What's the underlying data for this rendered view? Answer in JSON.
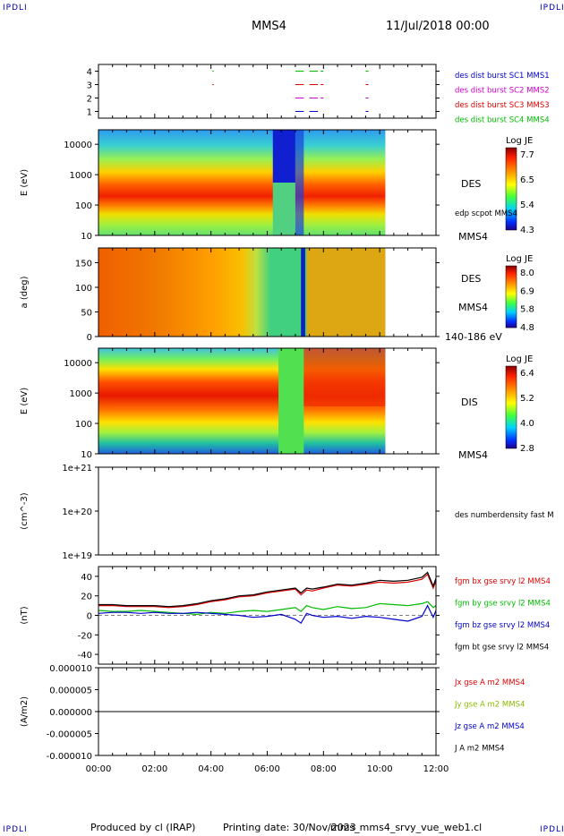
{
  "corners": {
    "tl": "IPDLI",
    "tr": "IPDLI",
    "bl": "IPDLI",
    "br": "IPDLI"
  },
  "header": {
    "title": "MMS4",
    "datetime": "11/Jul/2018 00:00"
  },
  "footer": {
    "produced_by": "Produced by cl (IRAP)",
    "printing_date": "Printing date: 30/Nov/2023",
    "file": "mms_mms4_srvy_vue_web1.cl"
  },
  "time_axis": {
    "ticks": [
      "00:00",
      "02:00",
      "04:00",
      "06:00",
      "08:00",
      "10:00",
      "12:00"
    ],
    "hours": [
      0,
      2,
      4,
      6,
      8,
      10,
      12
    ]
  },
  "chart_data": [
    {
      "type": "scatter",
      "title": "",
      "ylabel": "",
      "ylim": [
        0.5,
        4.5
      ],
      "yticks": [
        "1",
        "2",
        "3",
        "4"
      ],
      "legend": [
        {
          "text": "des dist burst SC1 MMS1",
          "color": "#0000cc"
        },
        {
          "text": "des dist burst SC2 MMS2",
          "color": "#cc00cc"
        },
        {
          "text": "des dist burst SC3 MMS3",
          "color": "#dd0000"
        },
        {
          "text": "des dist burst SC4 MMS4",
          "color": "#00bb00"
        }
      ],
      "intervals": [
        {
          "sc": 1,
          "color": "#0000cc",
          "h": [
            [
              7.0,
              7.3
            ],
            [
              7.5,
              7.8
            ],
            [
              9.5,
              9.6
            ]
          ]
        },
        {
          "sc": 2,
          "color": "#cc00cc",
          "h": [
            [
              7.0,
              7.3
            ],
            [
              7.5,
              7.8
            ],
            [
              7.9,
              8.0
            ],
            [
              9.5,
              9.6
            ]
          ]
        },
        {
          "sc": 3,
          "color": "#dd0000",
          "h": [
            [
              4.05,
              4.1
            ],
            [
              7.0,
              7.3
            ],
            [
              7.5,
              7.8
            ],
            [
              7.9,
              8.0
            ],
            [
              9.5,
              9.6
            ]
          ]
        },
        {
          "sc": 4,
          "color": "#00bb00",
          "h": [
            [
              4.05,
              4.1
            ],
            [
              7.0,
              7.3
            ],
            [
              7.5,
              7.8
            ],
            [
              7.9,
              8.0
            ],
            [
              9.5,
              9.6
            ]
          ]
        }
      ]
    },
    {
      "type": "heatmap",
      "ylabel": "E (eV)",
      "yscale": "log",
      "ylim": [
        10,
        30000
      ],
      "yticks": [
        "10",
        "100",
        "1000",
        "10000"
      ],
      "right_labels": [
        "DES",
        "edp scpot MMS4",
        "MMS4"
      ],
      "colorbar": {
        "title": "Log JE",
        "ticks": [
          "7.7",
          "6.5",
          "5.4",
          "4.3"
        ]
      },
      "data_end_hour": 10.2
    },
    {
      "type": "heatmap",
      "ylabel": "a (deg)",
      "ylim": [
        0,
        180
      ],
      "yticks": [
        "0",
        "50",
        "100",
        "150"
      ],
      "right_labels": [
        "DES",
        "MMS4",
        "140-186 eV"
      ],
      "colorbar": {
        "title": "Log JE",
        "ticks": [
          "8.0",
          "6.9",
          "5.8",
          "4.8"
        ]
      },
      "data_end_hour": 10.2
    },
    {
      "type": "heatmap",
      "ylabel": "E (eV)",
      "yscale": "log",
      "ylim": [
        10,
        30000
      ],
      "yticks": [
        "10",
        "100",
        "1000",
        "10000"
      ],
      "right_labels": [
        "DIS",
        "MMS4"
      ],
      "colorbar": {
        "title": "Log JE",
        "ticks": [
          "6.4",
          "5.2",
          "4.0",
          "2.8"
        ]
      },
      "data_end_hour": 10.2
    },
    {
      "type": "line",
      "ylabel": "(cm^-3)",
      "yscale": "log",
      "ylim": [
        1e+19,
        1e+21
      ],
      "yticks": [
        "1e+19",
        "1e+20",
        "1e+21"
      ],
      "legend": [
        {
          "text": "des numberdensity fast M",
          "color": "#000000"
        }
      ],
      "series": []
    },
    {
      "type": "line",
      "ylabel": "(nT)",
      "ylim": [
        -50,
        50
      ],
      "yticks": [
        "-40",
        "-20",
        "0",
        "20",
        "40"
      ],
      "legend": [
        {
          "text": "fgm bx gse srvy l2 MMS4",
          "color": "#dd0000"
        },
        {
          "text": "fgm by gse srvy l2 MMS4",
          "color": "#00bb00"
        },
        {
          "text": "fgm bz gse srvy l2 MMS4",
          "color": "#0000cc"
        },
        {
          "text": "fgm bt gse srvy l2 MMS4",
          "color": "#000000"
        }
      ],
      "series": [
        {
          "color": "#dd0000",
          "x": [
            0,
            0.5,
            1,
            1.5,
            2,
            2.5,
            3,
            3.5,
            4,
            4.5,
            5,
            5.5,
            6,
            6.5,
            7,
            7.2,
            7.4,
            7.6,
            8,
            8.5,
            9,
            9.5,
            10,
            10.5,
            11,
            11.5,
            11.7,
            11.9,
            12
          ],
          "y": [
            10,
            10,
            9,
            9,
            9,
            8,
            9,
            11,
            14,
            16,
            19,
            20,
            23,
            25,
            27,
            21,
            26,
            25,
            28,
            31,
            30,
            32,
            34,
            33,
            34,
            37,
            42,
            28,
            35
          ]
        },
        {
          "color": "#00bb00",
          "x": [
            0,
            0.5,
            1,
            1.5,
            2,
            2.5,
            3,
            3.5,
            4,
            4.5,
            5,
            5.5,
            6,
            6.5,
            7,
            7.2,
            7.4,
            7.6,
            8,
            8.5,
            9,
            9.5,
            10,
            10.5,
            11,
            11.5,
            11.7,
            11.9,
            12
          ],
          "y": [
            5,
            4,
            4,
            5,
            4,
            3,
            2,
            1,
            3,
            2,
            4,
            5,
            4,
            6,
            8,
            4,
            10,
            8,
            6,
            9,
            7,
            8,
            12,
            11,
            10,
            12,
            14,
            8,
            10
          ]
        },
        {
          "color": "#0000cc",
          "x": [
            0,
            0.5,
            1,
            1.5,
            2,
            2.5,
            3,
            3.5,
            4,
            4.5,
            5,
            5.5,
            6,
            6.5,
            7,
            7.2,
            7.4,
            7.6,
            8,
            8.5,
            9,
            9.5,
            10,
            10.5,
            11,
            11.5,
            11.7,
            11.9,
            12
          ],
          "y": [
            2,
            3,
            3,
            2,
            3,
            2,
            2,
            3,
            2,
            1,
            0,
            -2,
            -1,
            1,
            -4,
            -8,
            2,
            0,
            -2,
            -1,
            -3,
            -1,
            -2,
            -4,
            -6,
            -1,
            10,
            -2,
            5
          ]
        },
        {
          "color": "#000000",
          "x": [
            0,
            0.5,
            1,
            1.5,
            2,
            2.5,
            3,
            3.5,
            4,
            4.5,
            5,
            5.5,
            6,
            6.5,
            7,
            7.2,
            7.4,
            7.6,
            8,
            8.5,
            9,
            9.5,
            10,
            10.5,
            11,
            11.5,
            11.7,
            11.9,
            12
          ],
          "y": [
            11,
            11,
            10,
            10,
            10,
            9,
            10,
            12,
            15,
            17,
            20,
            21,
            24,
            26,
            28,
            23,
            28,
            27,
            29,
            32,
            31,
            33,
            36,
            35,
            36,
            39,
            44,
            30,
            38
          ]
        }
      ]
    },
    {
      "type": "line",
      "ylabel": "(A/m2)",
      "ylim": [
        -1e-05,
        1e-05
      ],
      "yticks": [
        "-0.000010",
        "-0.000005",
        "0.000000",
        "0.000005",
        "0.000010"
      ],
      "legend": [
        {
          "text": "Jx gse A m2 MMS4",
          "color": "#dd0000"
        },
        {
          "text": "Jy gse A m2 MMS4",
          "color": "#88bb00"
        },
        {
          "text": "Jz gse A m2 MMS4",
          "color": "#0000cc"
        },
        {
          "text": "J A m2 MMS4",
          "color": "#000000"
        }
      ],
      "series": [
        {
          "color": "#000000",
          "x": [
            0,
            12
          ],
          "y": [
            0,
            0
          ]
        }
      ]
    }
  ]
}
